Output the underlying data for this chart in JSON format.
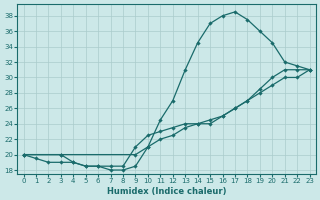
{
  "xlabel": "Humidex (Indice chaleur)",
  "xlim": [
    -0.5,
    23.5
  ],
  "ylim": [
    17.5,
    39.5
  ],
  "xticks": [
    0,
    1,
    2,
    3,
    4,
    5,
    6,
    7,
    8,
    9,
    10,
    11,
    12,
    13,
    14,
    15,
    16,
    17,
    18,
    19,
    20,
    21,
    22,
    23
  ],
  "yticks": [
    18,
    20,
    22,
    24,
    26,
    28,
    30,
    32,
    34,
    36,
    38
  ],
  "bg_color": "#cce8e8",
  "line_color": "#1a6b6b",
  "grid_color": "#aacccc",
  "curve1_x": [
    0,
    1,
    2,
    3,
    4,
    5,
    6,
    7,
    8,
    9,
    10,
    11,
    12,
    13,
    14,
    15,
    16,
    17,
    18,
    19,
    20,
    21,
    22,
    23
  ],
  "curve1_y": [
    20,
    19.5,
    19,
    19,
    19,
    18.5,
    18.5,
    18,
    18,
    18.5,
    21,
    24.5,
    27,
    31,
    34.5,
    37,
    38,
    38.5,
    37.5,
    36,
    34.5,
    32,
    31.5,
    31
  ],
  "curve2_x": [
    0,
    3,
    4,
    5,
    6,
    7,
    8,
    9,
    10,
    11,
    12,
    13,
    14,
    15,
    16,
    17,
    18,
    19,
    20,
    21,
    22,
    23
  ],
  "curve2_y": [
    20,
    20,
    19,
    18.5,
    18.5,
    18.5,
    18.5,
    21,
    22.5,
    23,
    23.5,
    24,
    24,
    24.5,
    25,
    26,
    27,
    28.5,
    30,
    31,
    31,
    31
  ],
  "curve3_x": [
    0,
    3,
    9,
    10,
    11,
    12,
    13,
    14,
    15,
    16,
    17,
    18,
    19,
    20,
    21,
    22,
    23
  ],
  "curve3_y": [
    20,
    20,
    20,
    21,
    22,
    22.5,
    23.5,
    24,
    24,
    25,
    26,
    27,
    28,
    29,
    30,
    30,
    31
  ]
}
